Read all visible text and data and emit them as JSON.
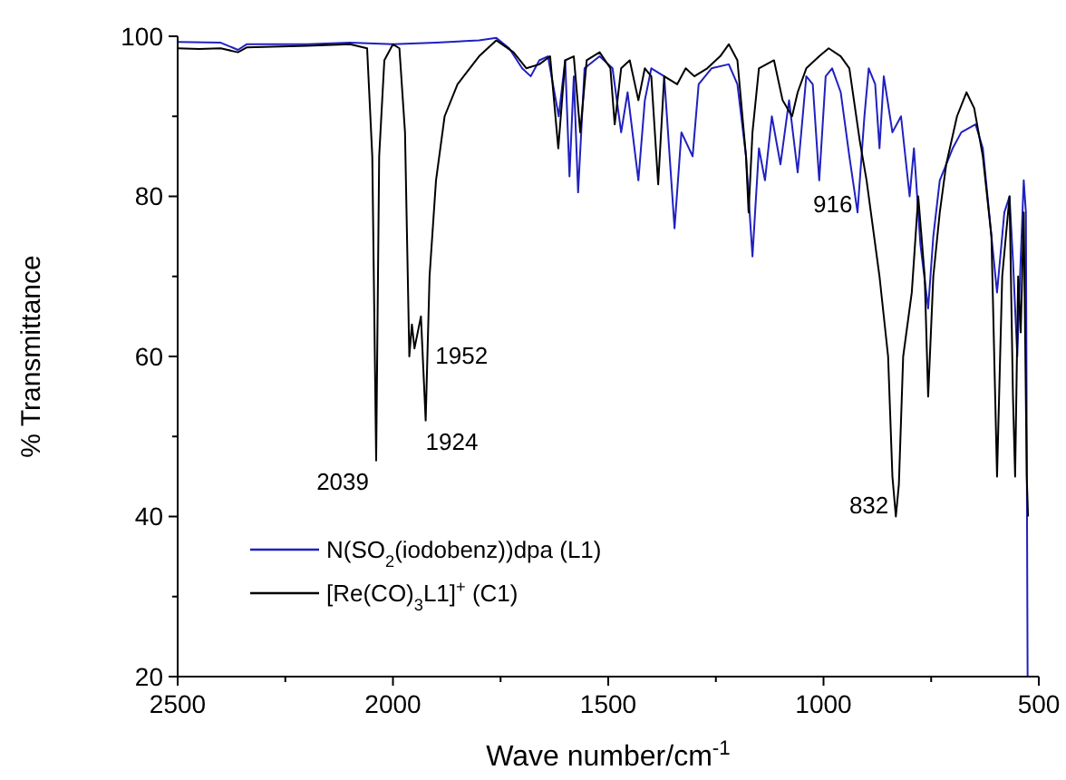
{
  "chart_data": {
    "type": "line",
    "xlabel": "Wave number/cm$^{-1}$",
    "ylabel": "% Transmittance",
    "xlim": [
      2500,
      500
    ],
    "ylim": [
      20,
      100
    ],
    "xticks": [
      2500,
      {
        "value": 2250,
        "label": null
      },
      2000,
      {
        "value": 1750,
        "label": null
      },
      1500,
      {
        "value": 1250,
        "label": null
      },
      1000,
      {
        "value": 750,
        "label": null
      },
      500
    ],
    "yticks": [
      20,
      {
        "value": 30,
        "label": null
      },
      40,
      {
        "value": 50,
        "label": null
      },
      60,
      {
        "value": 70,
        "label": null
      },
      80,
      {
        "value": 90,
        "label": null
      },
      100
    ],
    "grid": false,
    "legend": "bottom left",
    "line_style": "solid",
    "marker": "none",
    "annotations": [
      {
        "text": "2039",
        "x": 2039,
        "y": 47
      },
      {
        "text": "1952",
        "x": 1952,
        "y": 60
      },
      {
        "text": "1924",
        "x": 1924,
        "y": 52
      },
      {
        "text": "916",
        "x": 916,
        "y": 78
      },
      {
        "text": "832",
        "x": 832,
        "y": 40
      }
    ],
    "series": [
      {
        "name": "N(SO$_{2}$(iodobenz))dpa (L1)",
        "color": "#2020c0",
        "x": [
          2500,
          2400,
          2360,
          2340,
          2200,
          2100,
          2000,
          1900,
          1800,
          1760,
          1730,
          1700,
          1680,
          1660,
          1640,
          1615,
          1600,
          1590,
          1580,
          1570,
          1555,
          1520,
          1490,
          1470,
          1455,
          1430,
          1415,
          1400,
          1370,
          1346,
          1330,
          1304,
          1290,
          1260,
          1220,
          1200,
          1180,
          1165,
          1150,
          1136,
          1120,
          1100,
          1080,
          1060,
          1040,
          1025,
          1010,
          995,
          980,
          960,
          940,
          921,
          905,
          895,
          880,
          870,
          860,
          840,
          820,
          800,
          790,
          775,
          757,
          745,
          730,
          700,
          680,
          647,
          630,
          610,
          597,
          580,
          568,
          560,
          550,
          545,
          535,
          530,
          526
        ],
        "values": [
          99.3,
          99.2,
          98.3,
          99,
          99,
          99.2,
          99,
          99.2,
          99.5,
          99.8,
          98.5,
          96,
          95,
          97,
          97.5,
          90,
          97,
          82.5,
          95,
          80.5,
          96,
          97.5,
          96,
          88,
          93,
          82,
          92,
          96,
          95,
          76,
          88,
          85,
          94,
          96,
          96.5,
          94,
          85,
          72.5,
          86,
          82,
          90,
          84,
          92,
          83,
          95,
          94,
          82,
          95,
          96,
          93,
          85,
          78,
          90,
          96,
          94,
          86,
          95,
          88,
          90,
          80,
          86,
          74,
          66,
          75,
          82,
          86,
          88,
          89,
          86,
          75,
          68,
          78,
          80,
          72,
          60,
          68,
          82,
          78,
          20
        ]
      },
      {
        "name": "[Re(CO)$_{3}$L1]$^{+}$ (C1)",
        "color": "#000000",
        "x": [
          2500,
          2450,
          2400,
          2360,
          2340,
          2200,
          2100,
          2060,
          2048,
          2039,
          2032,
          2020,
          2000,
          1985,
          1972,
          1962,
          1956,
          1950,
          1935,
          1924,
          1915,
          1900,
          1880,
          1850,
          1800,
          1760,
          1720,
          1690,
          1660,
          1635,
          1616,
          1600,
          1580,
          1565,
          1550,
          1520,
          1495,
          1485,
          1470,
          1450,
          1430,
          1415,
          1400,
          1384,
          1370,
          1340,
          1320,
          1300,
          1270,
          1240,
          1220,
          1200,
          1180,
          1174,
          1165,
          1150,
          1115,
          1095,
          1073,
          1060,
          1040,
          1010,
          988,
          960,
          940,
          916,
          900,
          870,
          850,
          840,
          832,
          825,
          815,
          795,
          780,
          765,
          757,
          745,
          730,
          715,
          690,
          668,
          650,
          630,
          610,
          597,
          585,
          568,
          560,
          555,
          548,
          542,
          535,
          528,
          525
        ],
        "values": [
          98.5,
          98.4,
          98.5,
          98,
          98.6,
          98.8,
          99,
          98.5,
          85,
          47,
          85,
          97,
          99,
          98.5,
          88,
          60,
          64,
          61,
          65,
          52,
          70,
          82,
          90,
          94,
          97.5,
          99.5,
          98,
          96,
          96.5,
          97.5,
          86,
          97,
          97.5,
          88,
          97,
          98,
          96,
          89,
          96,
          97,
          92,
          96,
          95,
          81.5,
          95,
          94,
          96,
          95,
          96,
          97.5,
          99,
          97,
          85,
          78,
          88,
          96,
          97,
          92,
          90,
          93,
          96,
          97.5,
          98.5,
          97.5,
          96,
          87,
          82,
          70,
          60,
          45,
          40,
          44,
          60,
          68,
          80,
          70,
          55,
          70,
          78,
          84,
          90,
          93,
          91,
          85,
          75,
          45,
          70,
          80,
          55,
          45,
          70,
          63,
          78,
          45,
          40
        ]
      }
    ]
  }
}
